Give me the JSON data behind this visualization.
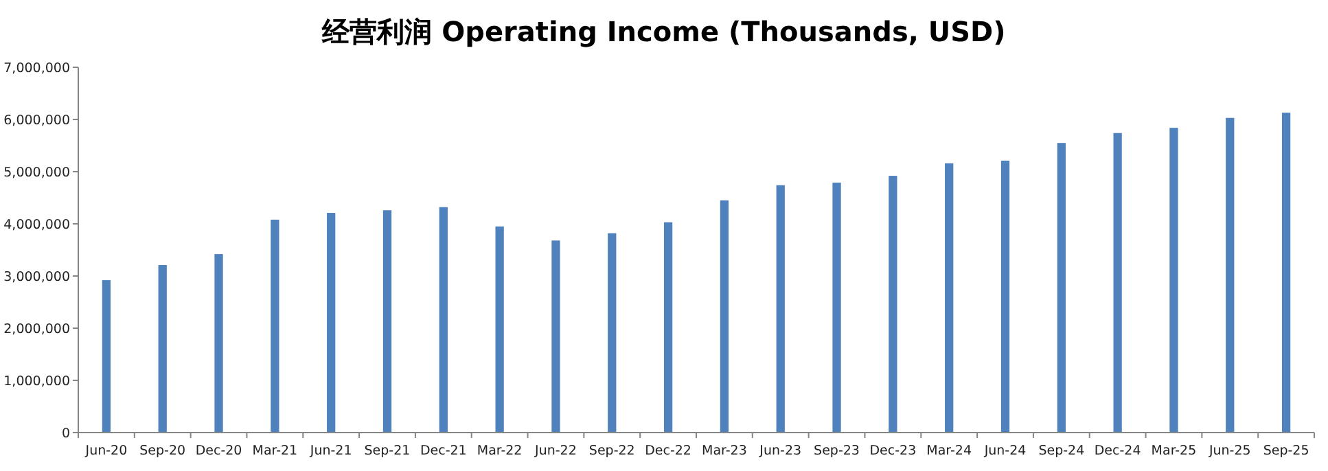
{
  "chart_data": {
    "type": "bar",
    "title": "经营利润 Operating Income (Thousands, USD)",
    "categories": [
      "Jun-20",
      "Sep-20",
      "Dec-20",
      "Mar-21",
      "Jun-21",
      "Sep-21",
      "Dec-21",
      "Mar-22",
      "Jun-22",
      "Sep-22",
      "Dec-22",
      "Mar-23",
      "Jun-23",
      "Sep-23",
      "Dec-23",
      "Mar-24",
      "Jun-24",
      "Sep-24",
      "Dec-24",
      "Mar-25",
      "Jun-25",
      "Sep-25"
    ],
    "values": [
      2920000,
      3210000,
      3420000,
      4080000,
      4210000,
      4260000,
      4320000,
      3950000,
      3680000,
      3820000,
      4030000,
      4450000,
      4740000,
      4790000,
      4920000,
      5160000,
      5210000,
      5550000,
      5740000,
      5840000,
      6030000,
      6130000
    ],
    "color": "#4f81bd",
    "ylim": [
      0,
      7000000
    ],
    "yticks": [
      {
        "value": 0,
        "label": "0"
      },
      {
        "value": 1000000,
        "label": "1,000,000"
      },
      {
        "value": 2000000,
        "label": "2,000,000"
      },
      {
        "value": 3000000,
        "label": "3,000,000"
      },
      {
        "value": 4000000,
        "label": "4,000,000"
      },
      {
        "value": 5000000,
        "label": "5,000,000"
      },
      {
        "value": 6000000,
        "label": "6,000,000"
      },
      {
        "value": 7000000,
        "label": "7,000,000"
      }
    ],
    "grid": false
  }
}
